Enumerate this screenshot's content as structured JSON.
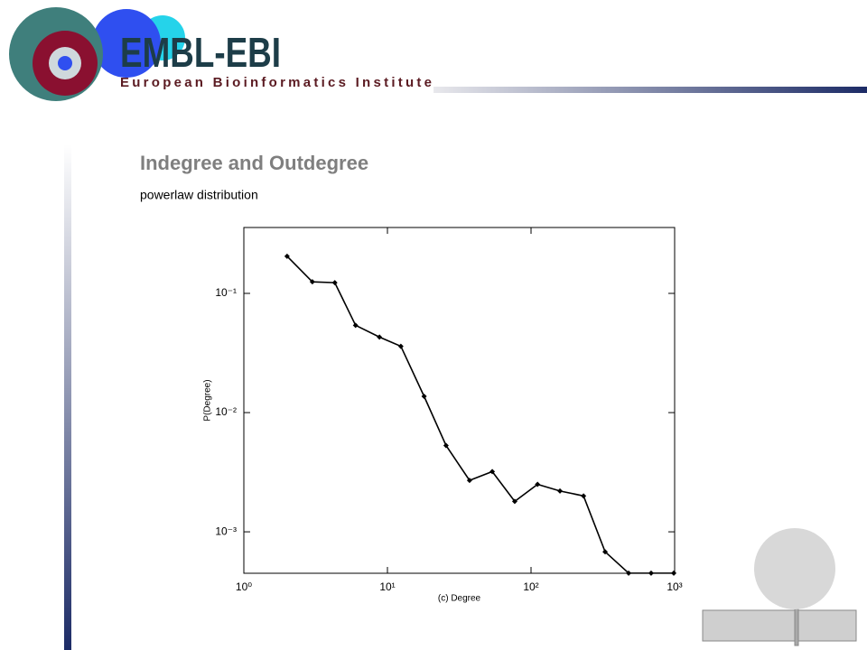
{
  "header": {
    "logo_title": "EMBL-EBI",
    "logo_subtitle": "European Bioinformatics Institute"
  },
  "slide": {
    "title": "Indegree and Outdegree",
    "subtitle": "powerlaw distribution"
  },
  "chart_data": {
    "type": "line",
    "x_label": "(c) Degree",
    "y_label": "P(Degree)",
    "xscale": "log",
    "yscale": "log",
    "color": "#000000",
    "marker": "diamond",
    "x": [
      2.0,
      3,
      4.3,
      6.0,
      8.8,
      12.4,
      18,
      25.6,
      37.3,
      53.7,
      77,
      111,
      159,
      232,
      328,
      478,
      686,
      986
    ],
    "values": [
      0.205,
      0.125,
      0.123,
      0.054,
      0.043,
      0.036,
      0.0137,
      0.0053,
      0.0027,
      0.0032,
      0.0018,
      0.0025,
      0.0022,
      0.002,
      0.00068,
      0.00045,
      0.00045,
      0.00045
    ],
    "xlim": [
      1,
      1000
    ],
    "ylim": [
      0.000449,
      0.357
    ],
    "xticks": [
      {
        "value": 1,
        "label": "10⁰"
      },
      {
        "value": 10,
        "label": "10¹"
      },
      {
        "value": 100,
        "label": "10²"
      },
      {
        "value": 1000,
        "label": "10³"
      }
    ],
    "yticks": [
      {
        "value": 0.001,
        "label": "10⁻³"
      },
      {
        "value": 0.01,
        "label": "10⁻²"
      },
      {
        "value": 0.1,
        "label": "10⁻¹"
      }
    ]
  }
}
